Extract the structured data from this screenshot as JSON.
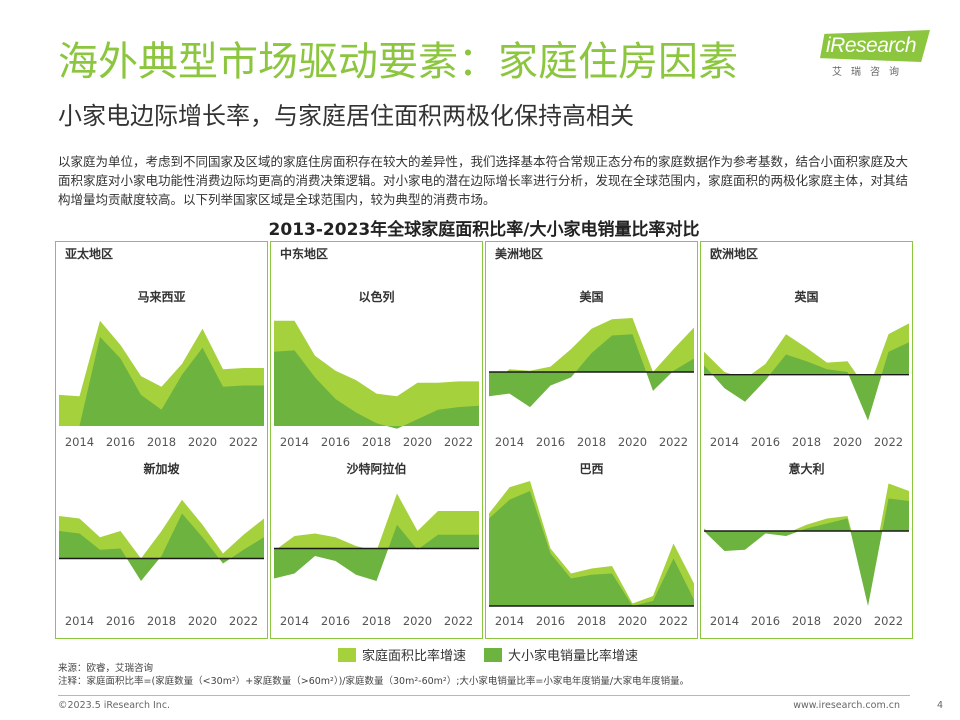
{
  "header": {
    "title": "海外典型市场驱动要素：家庭住房因素",
    "subtitle": "小家电边际增长率，与家庭居住面积两极化保持高相关",
    "logo_text": "iResearch",
    "logo_cn": "艾瑞咨询"
  },
  "intro": "以家庭为单位，考虑到不同国家及区域的家庭住房面积存在较大的差异性，我们选择基本符合常规正态分布的家庭数据作为参考基数，结合小面积家庭及大面积家庭对小家电功能性消费边际均更高的消费决策逻辑。对小家电的潜在边际增长率进行分析，发现在全球范围内，家庭面积的两极化家庭主体，对其结构增量均贡献度较高。以下列举国家区域是全球范围内，较为典型的消费市场。",
  "legend": {
    "series1": "家庭面积比率增速",
    "series2": "大小家电销量比率增速"
  },
  "notes": {
    "source": "来源：欧睿，艾瑞咨询",
    "note": "注释：家庭面积比率=(家庭数量（<30m²）+家庭数量（>60m²）)/家庭数量（30m²-60m²）;大小家电销量比率=小家电年度销量/大家电年度销量。"
  },
  "footer": {
    "copyright": "©2023.5 iResearch Inc.",
    "website": "www.iresearch.com.cn",
    "page": "4"
  },
  "colors": {
    "accent": "#8cc63f",
    "light_series": "#a5d13d",
    "dark_series": "#6cb33f",
    "zero_line": "#1a1a1a"
  },
  "chart_data": {
    "type": "area",
    "title": "2013-2023年全球家庭面积比率/大小家电销量比率对比",
    "x": [
      2013,
      2014,
      2015,
      2016,
      2017,
      2018,
      2019,
      2020,
      2021,
      2022,
      2023
    ],
    "xticks": [
      "2014",
      "2016",
      "2018",
      "2020",
      "2022"
    ],
    "value_scale": "normalized 0-1 height within each panel (no numeric axis shown)",
    "series_names": [
      "家庭面积比率增速",
      "大小家电销量比率增速"
    ],
    "regions": [
      {
        "name": "亚太地区",
        "column": 0
      },
      {
        "name": "中东地区",
        "column": 1
      },
      {
        "name": "美洲地区",
        "column": 2
      },
      {
        "name": "欧洲地区",
        "column": 3
      }
    ],
    "panels": [
      {
        "country": "马来西亚",
        "row": 0,
        "col": 0,
        "zero": null,
        "s1": [
          0.23,
          0.22,
          0.78,
          0.6,
          0.37,
          0.29,
          0.46,
          0.72,
          0.42,
          0.43,
          0.43
        ],
        "s2": [
          0.0,
          0.0,
          0.66,
          0.5,
          0.23,
          0.12,
          0.38,
          0.58,
          0.29,
          0.3,
          0.3
        ]
      },
      {
        "country": "以色列",
        "row": 0,
        "col": 1,
        "zero": null,
        "s1": [
          0.78,
          0.78,
          0.52,
          0.41,
          0.34,
          0.24,
          0.22,
          0.32,
          0.32,
          0.33,
          0.33
        ],
        "s2": [
          0.55,
          0.56,
          0.36,
          0.2,
          0.1,
          0.02,
          -0.02,
          0.05,
          0.12,
          0.14,
          0.15
        ]
      },
      {
        "country": "美国",
        "row": 0,
        "col": 2,
        "zero": 0.4,
        "s1": [
          0.3,
          0.42,
          0.41,
          0.44,
          0.57,
          0.72,
          0.79,
          0.8,
          0.4,
          0.57,
          0.73
        ],
        "s2": [
          0.22,
          0.24,
          0.14,
          0.3,
          0.36,
          0.54,
          0.67,
          0.68,
          0.26,
          0.41,
          0.5
        ]
      },
      {
        "country": "英国",
        "row": 0,
        "col": 3,
        "zero": 0.38,
        "s1": [
          0.55,
          0.4,
          0.35,
          0.46,
          0.68,
          0.58,
          0.47,
          0.48,
          0.26,
          0.68,
          0.76
        ],
        "s2": [
          0.45,
          0.28,
          0.18,
          0.34,
          0.53,
          0.48,
          0.42,
          0.4,
          0.04,
          0.55,
          0.62
        ]
      },
      {
        "country": "新加坡",
        "row": 1,
        "col": 0,
        "zero": 0.38,
        "s1": [
          0.72,
          0.7,
          0.55,
          0.6,
          0.38,
          0.6,
          0.85,
          0.65,
          0.42,
          0.57,
          0.7
        ],
        "s2": [
          0.6,
          0.58,
          0.45,
          0.46,
          0.2,
          0.4,
          0.74,
          0.55,
          0.34,
          0.45,
          0.55
        ]
      },
      {
        "country": "沙特阿拉伯",
        "row": 1,
        "col": 1,
        "zero": 0.46,
        "s1": [
          0.44,
          0.56,
          0.58,
          0.55,
          0.48,
          0.44,
          0.9,
          0.6,
          0.76,
          0.76,
          0.76
        ],
        "s2": [
          0.22,
          0.26,
          0.4,
          0.36,
          0.25,
          0.2,
          0.65,
          0.45,
          0.57,
          0.57,
          0.57
        ]
      },
      {
        "country": "巴西",
        "row": 1,
        "col": 2,
        "zero": 0.0,
        "s1": [
          0.74,
          0.95,
          1.0,
          0.46,
          0.26,
          0.3,
          0.32,
          0.02,
          0.08,
          0.5,
          0.18
        ],
        "s2": [
          0.7,
          0.85,
          0.92,
          0.42,
          0.22,
          0.25,
          0.26,
          0.0,
          0.04,
          0.38,
          0.05
        ]
      },
      {
        "country": "意大利",
        "row": 1,
        "col": 3,
        "zero": 0.6,
        "s1": [
          0.62,
          0.5,
          0.52,
          0.6,
          0.58,
          0.65,
          0.7,
          0.72,
          0.1,
          0.98,
          0.92
        ],
        "s2": [
          0.6,
          0.44,
          0.45,
          0.58,
          0.56,
          0.62,
          0.66,
          0.7,
          0.0,
          0.86,
          0.84
        ]
      }
    ]
  }
}
